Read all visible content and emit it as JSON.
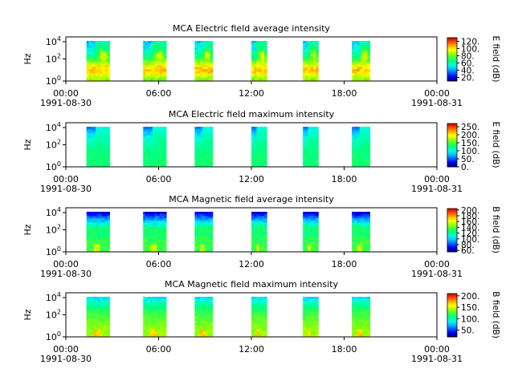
{
  "figure": {
    "time_start_label": "1991-08-30",
    "time_end_label": "1991-08-31"
  },
  "colormap": [
    "#000080",
    "#0000ff",
    "#0060ff",
    "#00c0ff",
    "#00ffe0",
    "#00ff80",
    "#40ff40",
    "#a0ff00",
    "#ffff00",
    "#ffb000",
    "#ff5000",
    "#e00000"
  ],
  "chart_data": [
    {
      "type": "heatmap",
      "title": "MCA  Electric field average intensity",
      "ylabel": "Hz",
      "y_scale": "log",
      "y_ticks": [
        "10^0",
        "10^2",
        "10^4"
      ],
      "x_tick_labels": [
        "00:00",
        "06:00",
        "12:00",
        "18:00",
        "00:00"
      ],
      "x_date_labels": [
        "1991-08-30",
        "1991-08-31"
      ],
      "x_range": [
        "1991-08-30 00:00",
        "1991-08-31 00:00"
      ],
      "colorbar_label": "E field (dB)",
      "colorbar_ticks": [
        20,
        40,
        60,
        80,
        100,
        120
      ],
      "colorbar_range": [
        10,
        130
      ],
      "data_intervals": [
        [
          "01:20",
          "02:50"
        ],
        [
          "05:00",
          "06:30"
        ],
        [
          "08:20",
          "09:30"
        ],
        [
          "12:00",
          "13:00"
        ],
        [
          "15:20",
          "16:20"
        ],
        [
          "18:30",
          "19:40"
        ]
      ],
      "base_level": 70
    },
    {
      "type": "heatmap",
      "title": "MCA  Electric field maximum intensity",
      "ylabel": "Hz",
      "y_scale": "log",
      "y_ticks": [
        "10^0",
        "10^2",
        "10^4"
      ],
      "x_tick_labels": [
        "00:00",
        "06:00",
        "12:00",
        "18:00",
        "00:00"
      ],
      "x_date_labels": [
        "1991-08-30",
        "1991-08-31"
      ],
      "x_range": [
        "1991-08-30 00:00",
        "1991-08-31 00:00"
      ],
      "colorbar_label": "E field (dB)",
      "colorbar_ticks": [
        0,
        50,
        100,
        150,
        200,
        250
      ],
      "colorbar_range": [
        0,
        270
      ],
      "data_intervals": [
        [
          "01:20",
          "02:50"
        ],
        [
          "05:00",
          "06:30"
        ],
        [
          "08:20",
          "09:30"
        ],
        [
          "12:00",
          "13:00"
        ],
        [
          "15:20",
          "16:20"
        ],
        [
          "18:30",
          "19:40"
        ]
      ],
      "base_level": 105
    },
    {
      "type": "heatmap",
      "title": "MCA  Magnetic field average intensity",
      "ylabel": "Hz",
      "y_scale": "log",
      "y_ticks": [
        "10^0",
        "10^2",
        "10^4"
      ],
      "x_tick_labels": [
        "00:00",
        "06:00",
        "12:00",
        "18:00",
        "00:00"
      ],
      "x_date_labels": [
        "1991-08-30",
        "1991-08-31"
      ],
      "x_range": [
        "1991-08-30 00:00",
        "1991-08-31 00:00"
      ],
      "colorbar_label": "B field (dB)",
      "colorbar_ticks": [
        60,
        80,
        100,
        120,
        140,
        160,
        180,
        200
      ],
      "colorbar_range": [
        55,
        205
      ],
      "data_intervals": [
        [
          "01:20",
          "02:50"
        ],
        [
          "05:00",
          "06:30"
        ],
        [
          "08:20",
          "09:30"
        ],
        [
          "12:00",
          "13:00"
        ],
        [
          "15:20",
          "16:20"
        ],
        [
          "18:30",
          "19:40"
        ]
      ],
      "base_level": 130
    },
    {
      "type": "heatmap",
      "title": "MCA  Magnetic field maximum intensity",
      "ylabel": "Hz",
      "y_scale": "log",
      "y_ticks": [
        "10^0",
        "10^2",
        "10^4"
      ],
      "x_tick_labels": [
        "00:00",
        "06:00",
        "12:00",
        "18:00",
        "00:00"
      ],
      "x_date_labels": [
        "1991-08-30",
        "1991-08-31"
      ],
      "x_range": [
        "1991-08-30 00:00",
        "1991-08-31 00:00"
      ],
      "colorbar_label": "B field (dB)",
      "colorbar_ticks": [
        50,
        100,
        150,
        200
      ],
      "colorbar_range": [
        20,
        210
      ],
      "data_intervals": [
        [
          "01:20",
          "02:50"
        ],
        [
          "05:00",
          "06:30"
        ],
        [
          "08:20",
          "09:30"
        ],
        [
          "12:00",
          "13:00"
        ],
        [
          "15:20",
          "16:20"
        ],
        [
          "18:30",
          "19:40"
        ]
      ],
      "base_level": 115
    }
  ]
}
